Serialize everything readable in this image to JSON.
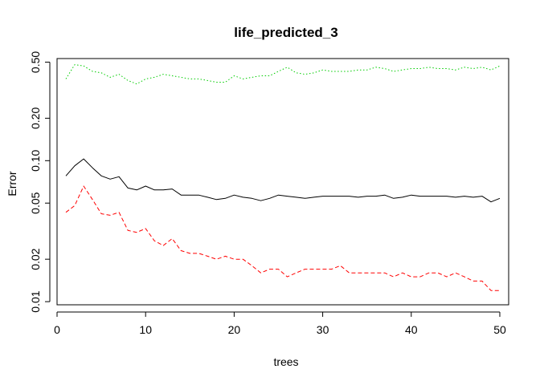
{
  "chart_data": {
    "type": "line",
    "title": "life_predicted_3",
    "xlabel": "trees",
    "ylabel": "Error",
    "xlim": [
      0,
      51
    ],
    "ylim": [
      0.0095,
      0.53
    ],
    "y_scale": "log",
    "x_ticks": [
      0,
      10,
      20,
      30,
      40,
      50
    ],
    "x_tick_labels": [
      "0",
      "10",
      "20",
      "30",
      "40",
      "50"
    ],
    "y_ticks": [
      0.01,
      0.02,
      0.05,
      0.1,
      0.2,
      0.5
    ],
    "y_tick_labels": [
      "0.01",
      "0.02",
      "0.05",
      "0.10",
      "0.20",
      "0.50"
    ],
    "grid": false,
    "legend": "none",
    "x": [
      1,
      2,
      3,
      4,
      5,
      6,
      7,
      8,
      9,
      10,
      11,
      12,
      13,
      14,
      15,
      16,
      17,
      18,
      19,
      20,
      21,
      22,
      23,
      24,
      25,
      26,
      27,
      28,
      29,
      30,
      31,
      32,
      33,
      34,
      35,
      36,
      37,
      38,
      39,
      40,
      41,
      42,
      43,
      44,
      45,
      46,
      47,
      48,
      49,
      50
    ],
    "series": [
      {
        "color": "#000000",
        "dash": "solid",
        "values": [
          0.078,
          0.092,
          0.103,
          0.089,
          0.078,
          0.074,
          0.077,
          0.064,
          0.062,
          0.066,
          0.062,
          0.062,
          0.063,
          0.057,
          0.057,
          0.057,
          0.055,
          0.053,
          0.054,
          0.057,
          0.055,
          0.054,
          0.052,
          0.054,
          0.057,
          0.056,
          0.055,
          0.054,
          0.055,
          0.056,
          0.056,
          0.056,
          0.056,
          0.055,
          0.056,
          0.056,
          0.057,
          0.054,
          0.055,
          0.057,
          0.056,
          0.056,
          0.056,
          0.056,
          0.055,
          0.056,
          0.055,
          0.056,
          0.051,
          0.054
        ]
      },
      {
        "color": "#ff0000",
        "dash": "dashed",
        "values": [
          0.043,
          0.048,
          0.066,
          0.053,
          0.042,
          0.041,
          0.043,
          0.032,
          0.031,
          0.033,
          0.027,
          0.025,
          0.028,
          0.023,
          0.022,
          0.022,
          0.021,
          0.02,
          0.021,
          0.02,
          0.02,
          0.018,
          0.016,
          0.017,
          0.017,
          0.015,
          0.016,
          0.017,
          0.017,
          0.017,
          0.017,
          0.018,
          0.016,
          0.016,
          0.016,
          0.016,
          0.016,
          0.015,
          0.016,
          0.015,
          0.015,
          0.016,
          0.016,
          0.015,
          0.016,
          0.015,
          0.014,
          0.014,
          0.012,
          0.012
        ]
      },
      {
        "color": "#00cd00",
        "dash": "dotted",
        "values": [
          0.38,
          0.48,
          0.47,
          0.43,
          0.42,
          0.39,
          0.41,
          0.37,
          0.35,
          0.38,
          0.39,
          0.41,
          0.4,
          0.39,
          0.38,
          0.38,
          0.37,
          0.36,
          0.36,
          0.4,
          0.38,
          0.39,
          0.4,
          0.4,
          0.43,
          0.46,
          0.42,
          0.41,
          0.42,
          0.44,
          0.43,
          0.43,
          0.43,
          0.44,
          0.44,
          0.46,
          0.45,
          0.43,
          0.44,
          0.45,
          0.45,
          0.46,
          0.45,
          0.45,
          0.44,
          0.46,
          0.45,
          0.46,
          0.44,
          0.47
        ]
      }
    ]
  }
}
